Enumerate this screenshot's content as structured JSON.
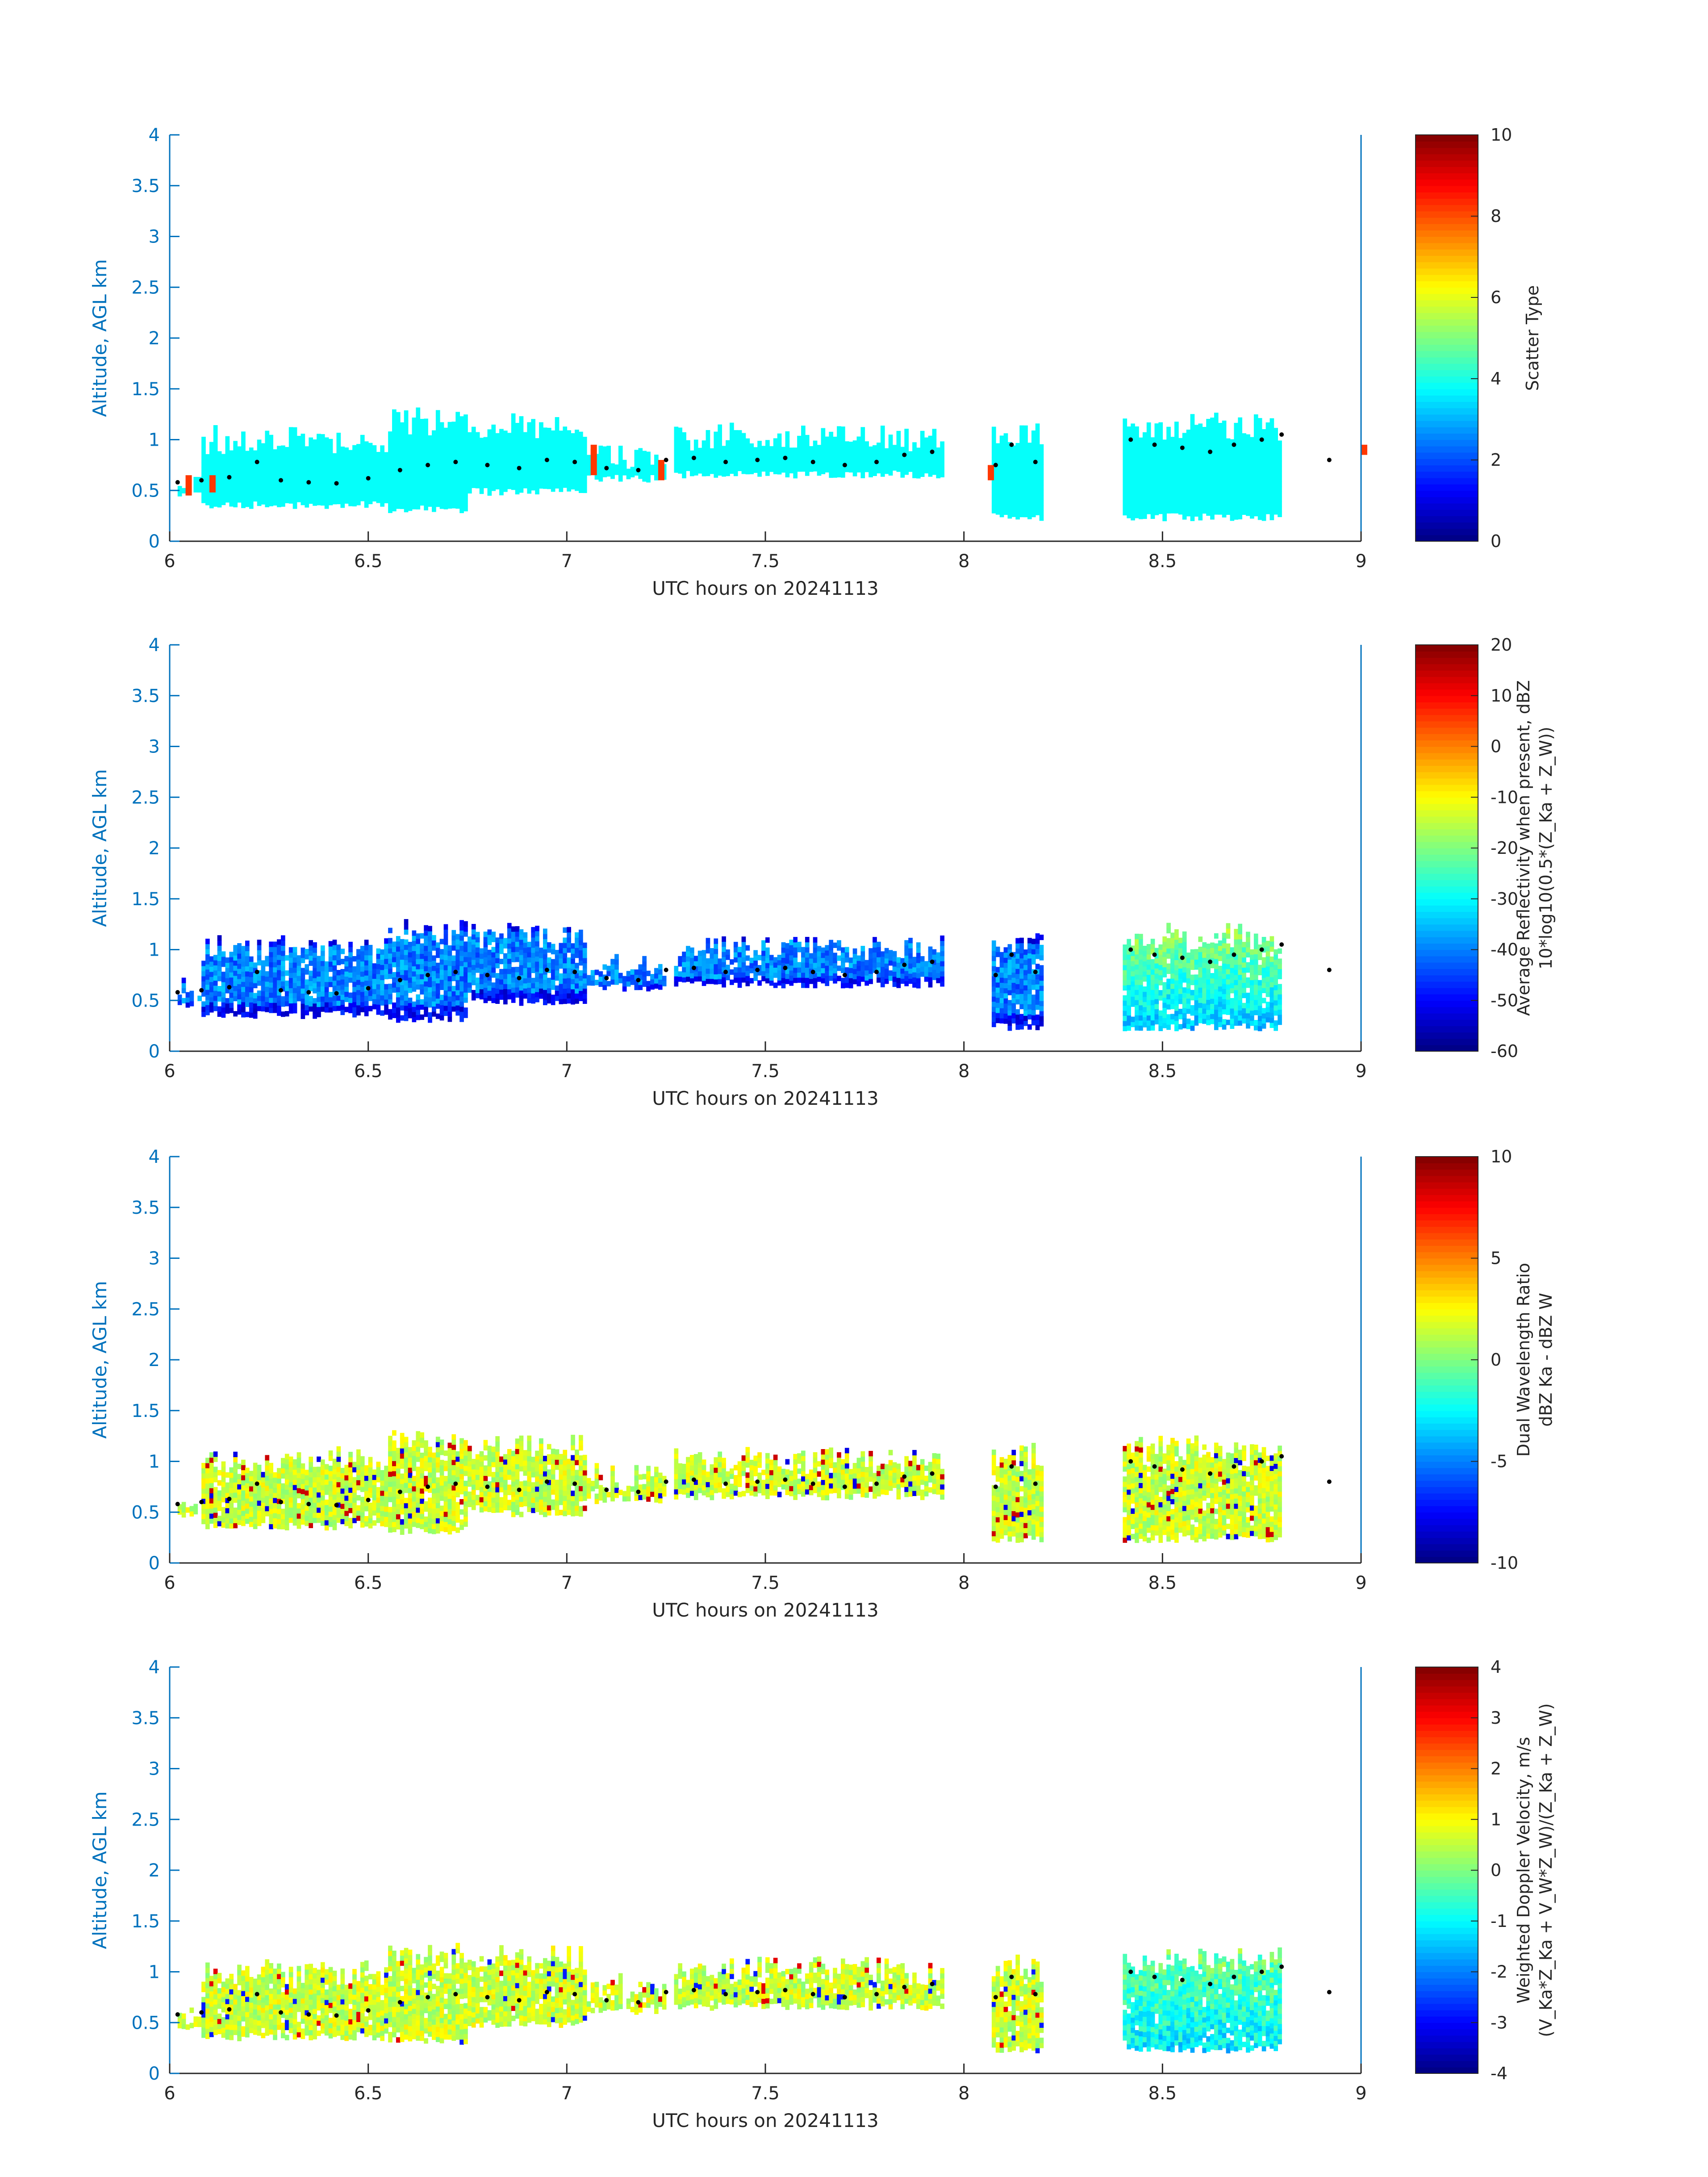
{
  "colors": {
    "axis_y": "#0072BD",
    "axis_x": "#262626",
    "dots": "#000000"
  },
  "chart_data": [
    {
      "type": "heatmap",
      "title": "",
      "xlabel": "UTC hours on 20241113",
      "ylabel": "Altitude, AGL km",
      "xlim": [
        6,
        9
      ],
      "ylim": [
        0,
        4
      ],
      "xticks": [
        "6",
        "6.5",
        "7",
        "7.5",
        "8",
        "8.5",
        "9"
      ],
      "yticks": [
        "0",
        "0.5",
        "1",
        "1.5",
        "2",
        "2.5",
        "3",
        "3.5",
        "4"
      ],
      "colorbar": {
        "label_lines": [
          "Scatter Type"
        ],
        "range": [
          0,
          10
        ],
        "ticks": [
          "0",
          "2",
          "4",
          "6",
          "8",
          "10"
        ],
        "colormap": "jet"
      },
      "field": "scatter_type"
    },
    {
      "type": "heatmap",
      "title": "",
      "xlabel": "UTC hours on 20241113",
      "ylabel": "Altitude, AGL km",
      "xlim": [
        6,
        9
      ],
      "ylim": [
        0,
        4
      ],
      "xticks": [
        "6",
        "6.5",
        "7",
        "7.5",
        "8",
        "8.5",
        "9"
      ],
      "yticks": [
        "0",
        "0.5",
        "1",
        "1.5",
        "2",
        "2.5",
        "3",
        "3.5",
        "4"
      ],
      "colorbar": {
        "label_lines": [
          "Average Reflectivity when present, dBZ",
          "10*log10(0.5*(Z_Ka + Z_W))"
        ],
        "range": [
          -60,
          20
        ],
        "ticks": [
          "-60",
          "-50",
          "-40",
          "-30",
          "-20",
          "-10",
          "0",
          "10",
          "20"
        ],
        "colormap": "jet"
      },
      "field": "reflectivity"
    },
    {
      "type": "heatmap",
      "title": "",
      "xlabel": "UTC hours on 20241113",
      "ylabel": "Altitude, AGL km",
      "xlim": [
        6,
        9
      ],
      "ylim": [
        0,
        4
      ],
      "xticks": [
        "6",
        "6.5",
        "7",
        "7.5",
        "8",
        "8.5",
        "9"
      ],
      "yticks": [
        "0",
        "0.5",
        "1",
        "1.5",
        "2",
        "2.5",
        "3",
        "3.5",
        "4"
      ],
      "colorbar": {
        "label_lines": [
          "Dual Wavelength Ratio",
          "dBZ Ka - dBZ W"
        ],
        "range": [
          -10,
          10
        ],
        "ticks": [
          "-10",
          "-5",
          "0",
          "5",
          "10"
        ],
        "colormap": "jet"
      },
      "field": "dwr"
    },
    {
      "type": "heatmap",
      "title": "",
      "xlabel": "UTC hours on 20241113",
      "ylabel": "Altitude, AGL km",
      "xlim": [
        6,
        9
      ],
      "ylim": [
        0,
        4
      ],
      "xticks": [
        "6",
        "6.5",
        "7",
        "7.5",
        "8",
        "8.5",
        "9"
      ],
      "yticks": [
        "0",
        "0.5",
        "1",
        "1.5",
        "2",
        "2.5",
        "3",
        "3.5",
        "4"
      ],
      "colorbar": {
        "label_lines": [
          "Weighted Doppler Velocity, m/s",
          "(V_Ka*Z_Ka + V_W*Z_W)/(Z_Ka + Z_W)"
        ],
        "range": [
          -4,
          4
        ],
        "ticks": [
          "-4",
          "-3",
          "-2",
          "-1",
          "0",
          "1",
          "2",
          "3",
          "4"
        ],
        "colormap": "jet"
      },
      "field": "doppler_velocity"
    }
  ],
  "cloud_segments": [
    {
      "t": [
        6.02,
        6.08
      ],
      "bottom": 0.42,
      "top": 0.68
    },
    {
      "t": [
        6.08,
        6.55
      ],
      "bottom": 0.32,
      "top": 1.1
    },
    {
      "t": [
        6.55,
        6.75
      ],
      "bottom": 0.28,
      "top": 1.28
    },
    {
      "t": [
        6.75,
        7.05
      ],
      "bottom": 0.45,
      "top": 1.25
    },
    {
      "t": [
        7.05,
        7.25
      ],
      "bottom": 0.58,
      "top": 0.95
    },
    {
      "t": [
        7.27,
        7.95
      ],
      "bottom": 0.62,
      "top": 1.12
    },
    {
      "t": [
        8.07,
        8.2
      ],
      "bottom": 0.2,
      "top": 1.15
    },
    {
      "t": [
        8.4,
        8.8
      ],
      "bottom": 0.2,
      "top": 1.22
    }
  ],
  "cloud_top_dots": [
    [
      6.02,
      0.58
    ],
    [
      6.08,
      0.6
    ],
    [
      6.15,
      0.63
    ],
    [
      6.22,
      0.78
    ],
    [
      6.28,
      0.6
    ],
    [
      6.35,
      0.58
    ],
    [
      6.42,
      0.57
    ],
    [
      6.5,
      0.62
    ],
    [
      6.58,
      0.7
    ],
    [
      6.65,
      0.75
    ],
    [
      6.72,
      0.78
    ],
    [
      6.8,
      0.75
    ],
    [
      6.88,
      0.72
    ],
    [
      6.95,
      0.8
    ],
    [
      7.02,
      0.78
    ],
    [
      7.1,
      0.72
    ],
    [
      7.18,
      0.7
    ],
    [
      7.25,
      0.8
    ],
    [
      7.32,
      0.82
    ],
    [
      7.4,
      0.78
    ],
    [
      7.48,
      0.8
    ],
    [
      7.55,
      0.82
    ],
    [
      7.62,
      0.78
    ],
    [
      7.7,
      0.75
    ],
    [
      7.78,
      0.78
    ],
    [
      7.85,
      0.85
    ],
    [
      7.92,
      0.88
    ],
    [
      8.08,
      0.75
    ],
    [
      8.12,
      0.95
    ],
    [
      8.18,
      0.78
    ],
    [
      8.42,
      1.0
    ],
    [
      8.48,
      0.95
    ],
    [
      8.55,
      0.92
    ],
    [
      8.62,
      0.88
    ],
    [
      8.68,
      0.95
    ],
    [
      8.75,
      1.0
    ],
    [
      8.8,
      1.05
    ],
    [
      8.92,
      0.8
    ]
  ]
}
